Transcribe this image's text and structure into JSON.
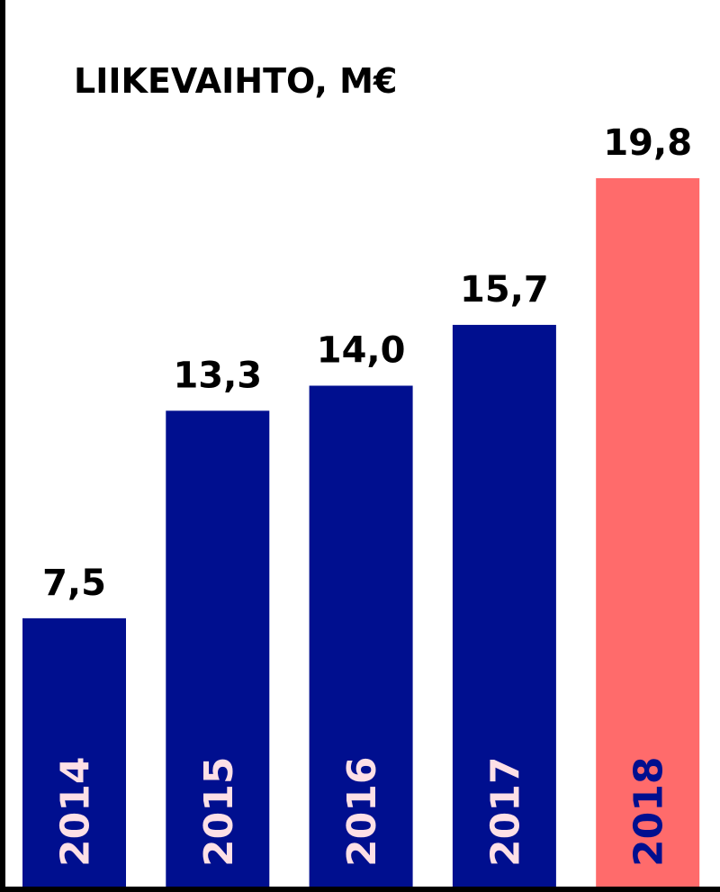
{
  "chart_data": {
    "type": "bar",
    "title": "LIIKEVAIHTO, M€",
    "categories": [
      "2014",
      "2015",
      "2016",
      "2017",
      "2018"
    ],
    "values": [
      7.5,
      13.3,
      14.0,
      15.7,
      19.8
    ],
    "value_labels": [
      "7,5",
      "13,3",
      "14,0",
      "15,7",
      "19,8"
    ],
    "colors": [
      "#000f8f",
      "#000f8f",
      "#000f8f",
      "#000f8f",
      "#ff6b6b"
    ],
    "category_label_colors": [
      "#fde0e6",
      "#fde0e6",
      "#fde0e6",
      "#fde0e6",
      "#000f8f"
    ]
  }
}
